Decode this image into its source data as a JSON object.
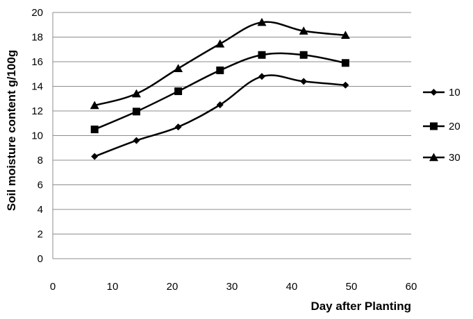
{
  "chart_data": {
    "type": "line",
    "title": "",
    "xlabel": "Day after Planting",
    "ylabel": "Soil moisture content g/100g",
    "xlim": [
      0,
      60
    ],
    "ylim": [
      0,
      20
    ],
    "x_ticks": [
      0,
      10,
      20,
      30,
      40,
      50,
      60
    ],
    "y_ticks": [
      0,
      2,
      4,
      6,
      8,
      10,
      12,
      14,
      16,
      18,
      20
    ],
    "grid": "horizontal",
    "legend_position": "right",
    "x": [
      7,
      14,
      21,
      28,
      35,
      42,
      49
    ],
    "series": [
      {
        "name": "10",
        "marker": "diamond",
        "color": "#000000",
        "values": [
          8.3,
          9.6,
          10.7,
          12.5,
          14.8,
          14.4,
          14.1
        ]
      },
      {
        "name": "20",
        "marker": "square",
        "color": "#000000",
        "values": [
          10.5,
          11.95,
          13.6,
          15.3,
          16.55,
          16.55,
          15.9
        ]
      },
      {
        "name": "30",
        "marker": "triangle",
        "color": "#000000",
        "values": [
          12.45,
          13.4,
          15.45,
          17.45,
          19.2,
          18.5,
          18.15
        ]
      }
    ]
  }
}
